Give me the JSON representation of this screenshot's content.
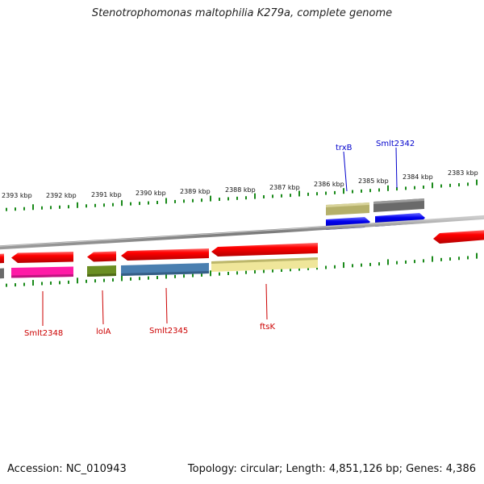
{
  "title": "Stenotrophomonas maltophilia K279a, complete genome",
  "footer": {
    "accession": "Accession: NC_010943",
    "topology": "Topology: circular; Length: 4,851,126 bp; Genes: 4,386"
  },
  "colors": {
    "backbone": "#888888",
    "tick": "#1a8a1a",
    "gene_arrow": "#ee0000",
    "label_reverse": "#cc0000",
    "label_forward": "#0000cc"
  },
  "scale_labels": [
    "2393 kbp",
    "2392 kbp",
    "2391 kbp",
    "2390 kbp",
    "2389 kbp",
    "2388 kbp",
    "2387 kbp",
    "2386 kbp",
    "2385 kbp",
    "2384 kbp",
    "2383 kbp"
  ],
  "genes": [
    {
      "name": "Smlt2348",
      "strand": "reverse",
      "feature_color": "#ff1aa6"
    },
    {
      "name": "lolA",
      "strand": "reverse",
      "feature_color": "#6b8e23"
    },
    {
      "name": "Smlt2345",
      "strand": "reverse",
      "feature_color": "#4a7fb0"
    },
    {
      "name": "ftsK",
      "strand": "reverse",
      "feature_color": "#efe69a"
    },
    {
      "name": "trxB",
      "strand": "forward",
      "feature_color": "#b5b06a"
    },
    {
      "name": "Smlt2342",
      "strand": "forward",
      "feature_color": "#6a6a6a"
    }
  ]
}
